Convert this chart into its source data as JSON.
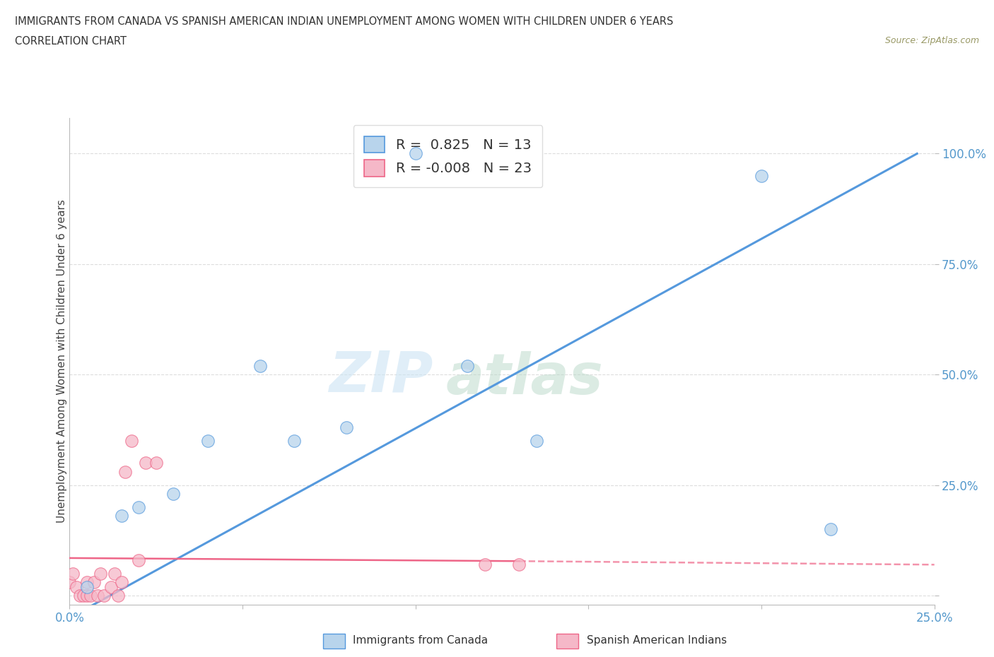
{
  "title_line1": "IMMIGRANTS FROM CANADA VS SPANISH AMERICAN INDIAN UNEMPLOYMENT AMONG WOMEN WITH CHILDREN UNDER 6 YEARS",
  "title_line2": "CORRELATION CHART",
  "source": "Source: ZipAtlas.com",
  "ylabel": "Unemployment Among Women with Children Under 6 years",
  "xlim": [
    0.0,
    0.25
  ],
  "ylim": [
    -0.02,
    1.08
  ],
  "canada_R": 0.825,
  "canada_N": 13,
  "spanish_R": -0.008,
  "spanish_N": 23,
  "canada_color": "#b8d4ec",
  "spanish_color": "#f5b8c8",
  "canada_line_color": "#5599dd",
  "spanish_line_color": "#ee6688",
  "canada_scatter_x": [
    0.005,
    0.015,
    0.02,
    0.03,
    0.04,
    0.055,
    0.065,
    0.08,
    0.1,
    0.115,
    0.135,
    0.2,
    0.22
  ],
  "canada_scatter_y": [
    0.02,
    0.18,
    0.2,
    0.23,
    0.35,
    0.52,
    0.35,
    0.38,
    1.0,
    0.52,
    0.35,
    0.95,
    0.15
  ],
  "spanish_scatter_x": [
    0.0,
    0.001,
    0.002,
    0.003,
    0.004,
    0.005,
    0.005,
    0.006,
    0.007,
    0.008,
    0.009,
    0.01,
    0.012,
    0.013,
    0.014,
    0.015,
    0.016,
    0.018,
    0.02,
    0.022,
    0.025,
    0.12,
    0.13
  ],
  "spanish_scatter_y": [
    0.03,
    0.05,
    0.02,
    0.0,
    0.0,
    0.0,
    0.03,
    0.0,
    0.03,
    0.0,
    0.05,
    0.0,
    0.02,
    0.05,
    0.0,
    0.03,
    0.28,
    0.35,
    0.08,
    0.3,
    0.3,
    0.07,
    0.07
  ],
  "watermark_zip": "ZIP",
  "watermark_atlas": "atlas",
  "grid_color": "#dddddd",
  "background_color": "#ffffff",
  "canada_line_pts": [
    [
      0.0,
      -0.05
    ],
    [
      0.245,
      1.0
    ]
  ],
  "spanish_line_pts": [
    [
      0.0,
      0.085
    ],
    [
      0.25,
      0.07
    ]
  ]
}
